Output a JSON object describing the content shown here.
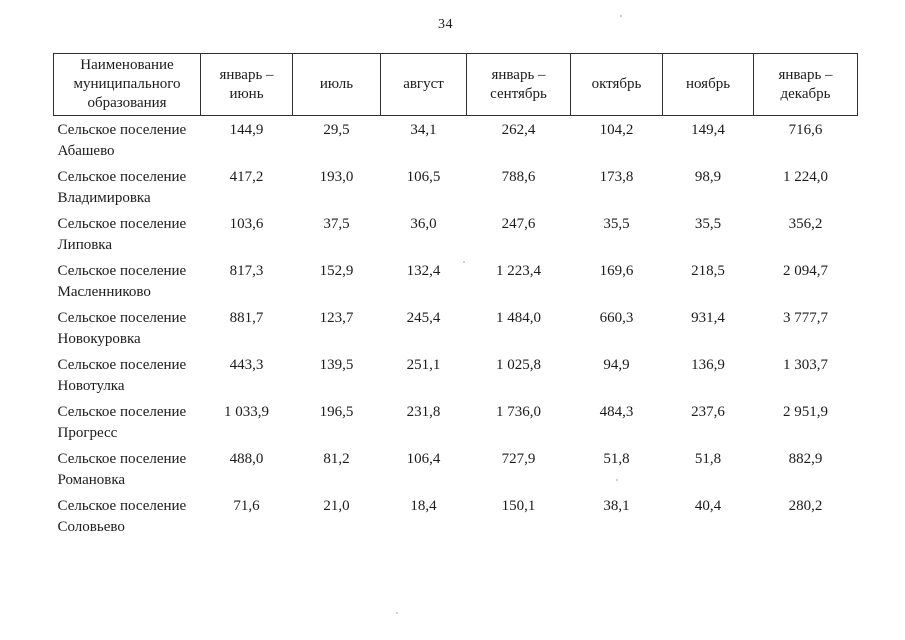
{
  "page": {
    "number": "34"
  },
  "colors": {
    "paper": "#ffffff",
    "ink": "#1c1c1c",
    "table_border": "#2f2f2f"
  },
  "table": {
    "columns": [
      {
        "label": "Наименование\nмуниципального\nобразования"
      },
      {
        "label": "январь –\nиюнь"
      },
      {
        "label": "июль"
      },
      {
        "label": "август"
      },
      {
        "label": "январь –\nсентябрь"
      },
      {
        "label": "октябрь"
      },
      {
        "label": "ноябрь"
      },
      {
        "label": "январь –\nдекабрь"
      }
    ],
    "rows": [
      {
        "name": "Сельское поселение\nАбашево",
        "values": [
          "144,9",
          "29,5",
          "34,1",
          "262,4",
          "104,2",
          "149,4",
          "716,6"
        ]
      },
      {
        "name": "Сельское поселение\nВладимировка",
        "values": [
          "417,2",
          "193,0",
          "106,5",
          "788,6",
          "173,8",
          "98,9",
          "1 224,0"
        ]
      },
      {
        "name": "Сельское поселение\nЛиповка",
        "values": [
          "103,6",
          "37,5",
          "36,0",
          "247,6",
          "35,5",
          "35,5",
          "356,2"
        ]
      },
      {
        "name": "Сельское поселение\nМасленниково",
        "values": [
          "817,3",
          "152,9",
          "132,4",
          "1 223,4",
          "169,6",
          "218,5",
          "2 094,7"
        ]
      },
      {
        "name": "Сельское поселение\nНовокуровка",
        "values": [
          "881,7",
          "123,7",
          "245,4",
          "1 484,0",
          "660,3",
          "931,4",
          "3 777,7"
        ]
      },
      {
        "name": "Сельское поселение\nНовотулка",
        "values": [
          "443,3",
          "139,5",
          "251,1",
          "1 025,8",
          "94,9",
          "136,9",
          "1 303,7"
        ]
      },
      {
        "name": "Сельское поселение\nПрогресс",
        "values": [
          "1 033,9",
          "196,5",
          "231,8",
          "1 736,0",
          "484,3",
          "237,6",
          "2 951,9"
        ]
      },
      {
        "name": "Сельское поселение\nРомановка",
        "values": [
          "488,0",
          "81,2",
          "106,4",
          "727,9",
          "51,8",
          "51,8",
          "882,9"
        ]
      },
      {
        "name": "Сельское поселение\nСоловьево",
        "values": [
          "71,6",
          "21,0",
          "18,4",
          "150,1",
          "38,1",
          "40,4",
          "280,2"
        ]
      }
    ]
  }
}
